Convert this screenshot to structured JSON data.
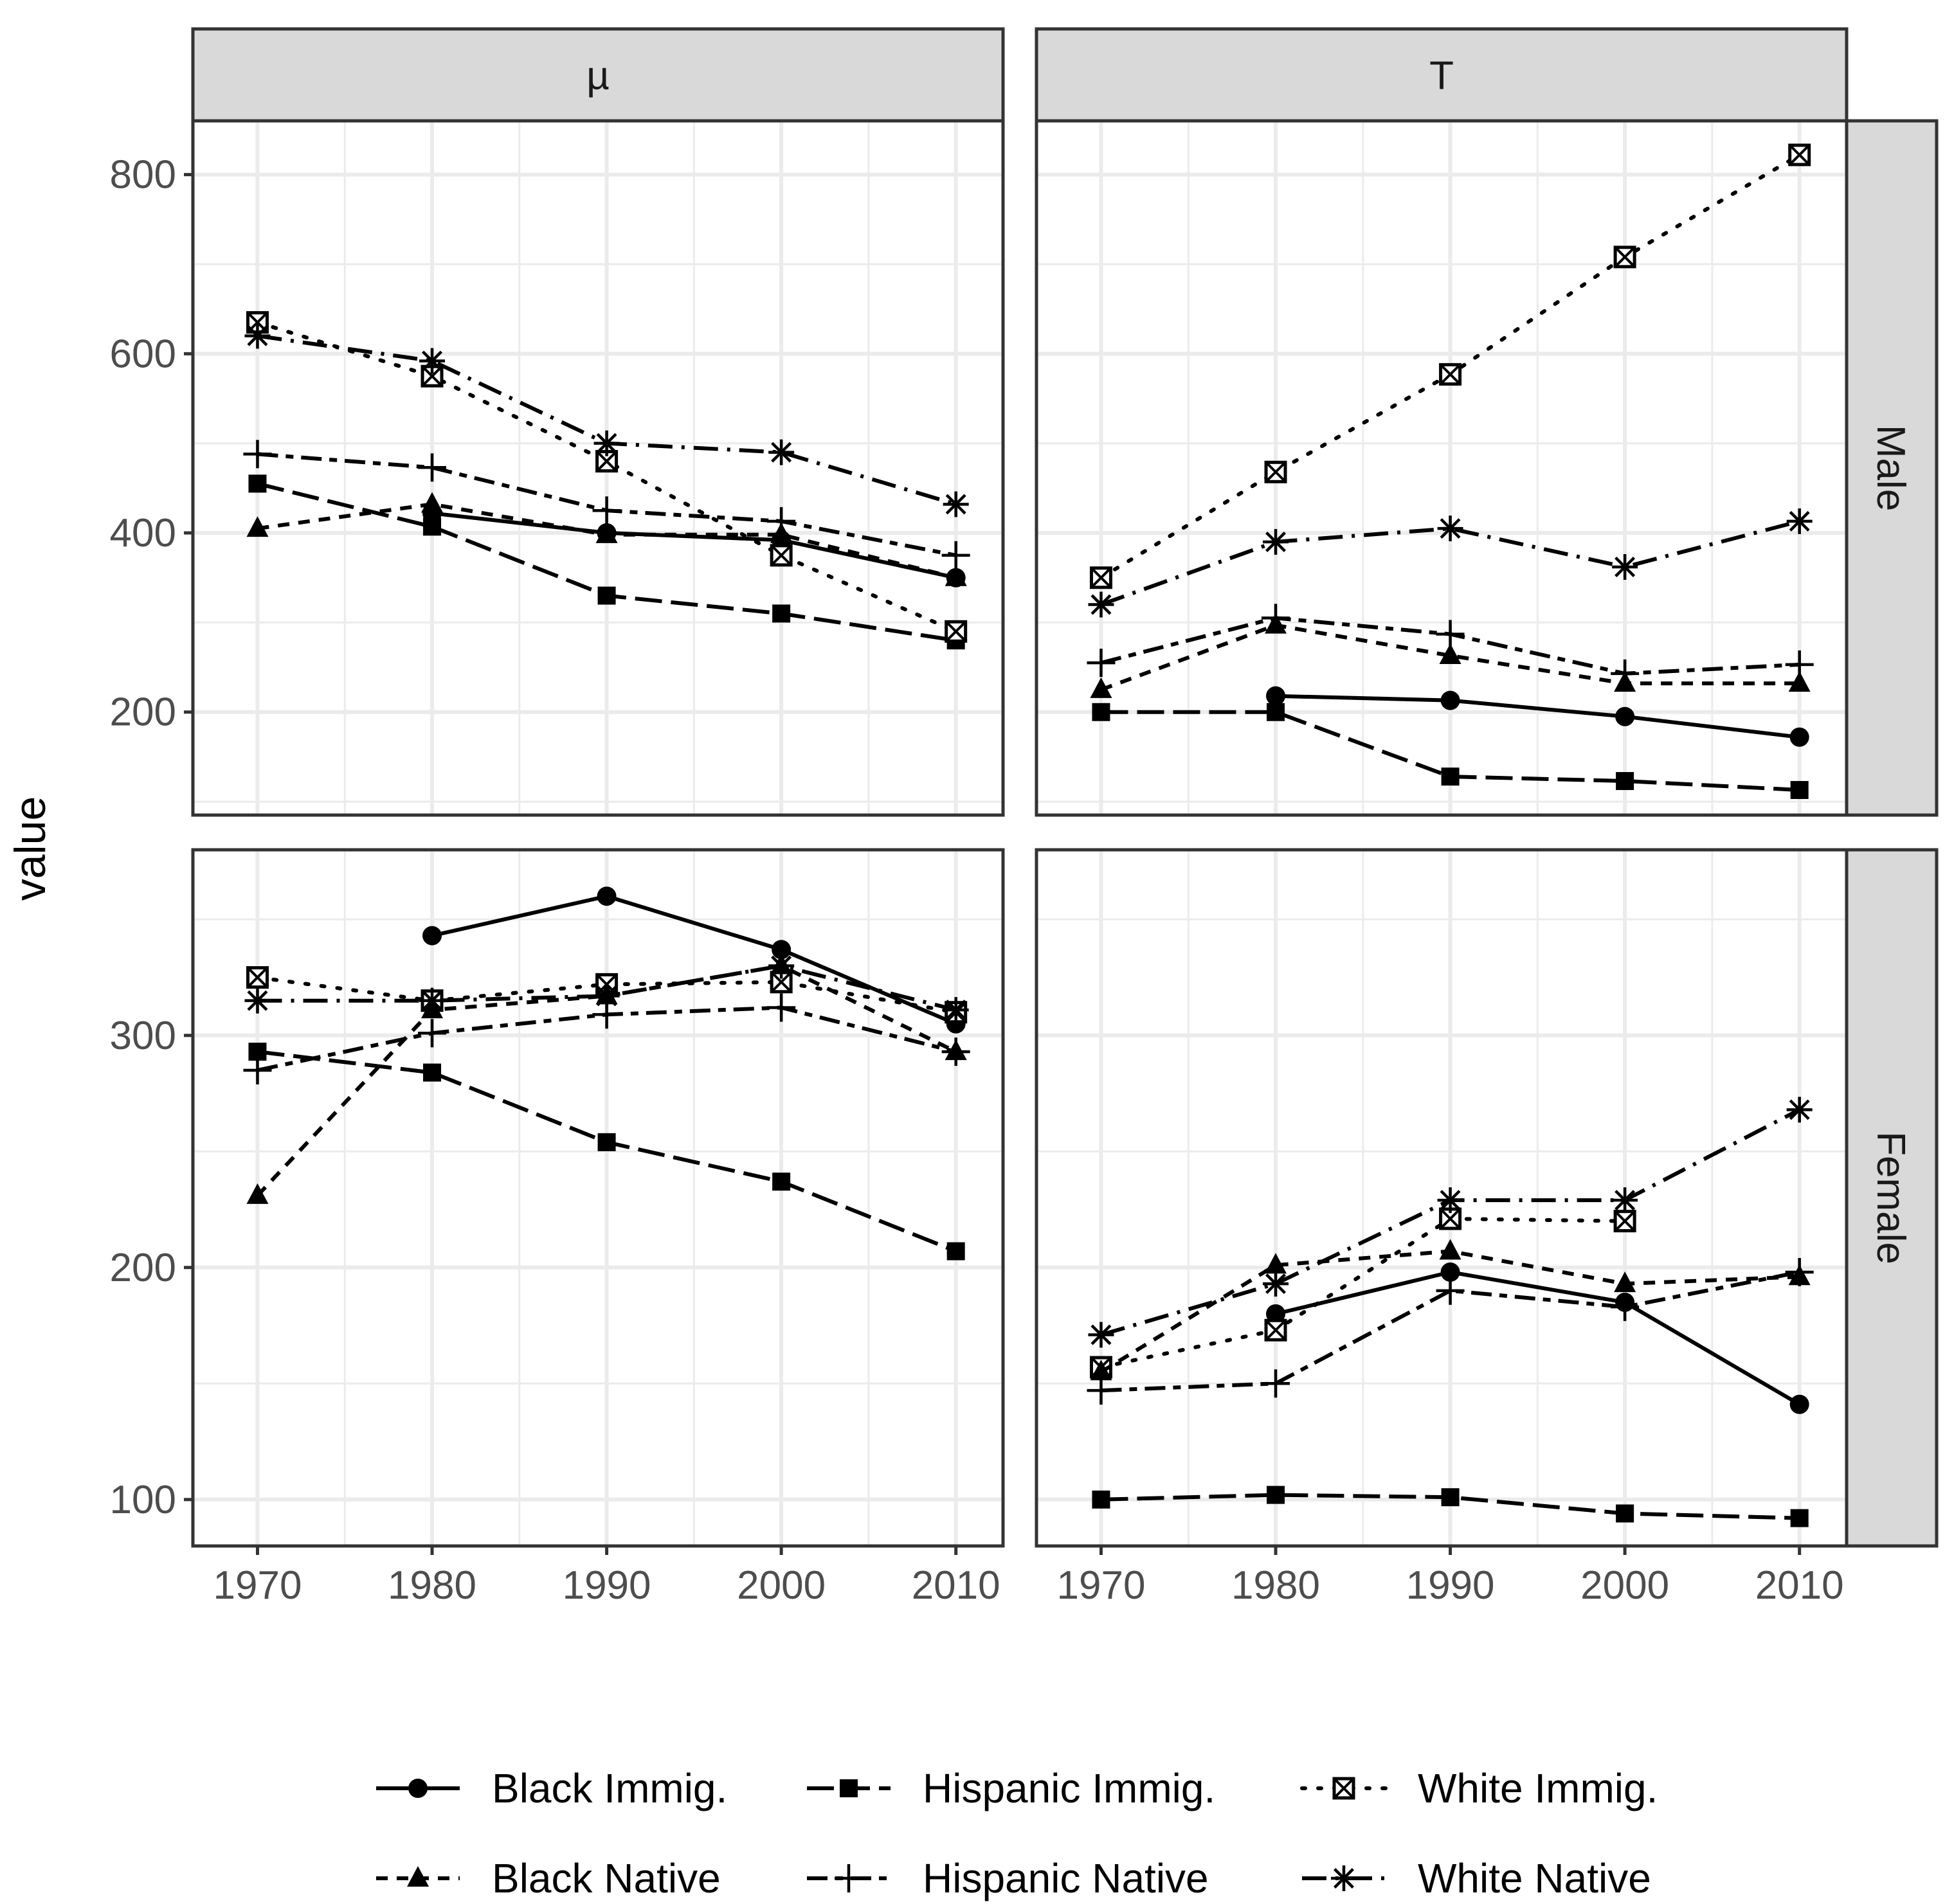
{
  "chart_data": {
    "type": "line",
    "x": [
      1970,
      1980,
      1990,
      2000,
      2010
    ],
    "ylabel": "value",
    "xlabel": "",
    "columns": [
      "µ",
      "T"
    ],
    "rows": [
      "Male",
      "Female"
    ],
    "row_ylims": {
      "Male": [
        85,
        860
      ],
      "Female": [
        80,
        380
      ]
    },
    "y_ticks": {
      "Male": [
        200,
        400,
        600,
        800
      ],
      "Female": [
        100,
        200,
        300
      ]
    },
    "x_ticks": [
      1970,
      1980,
      1990,
      2000,
      2010
    ],
    "series_names": [
      "Black Immig.",
      "Hispanic Immig.",
      "White Immig.",
      "Black Native",
      "Hispanic Native",
      "White Native"
    ],
    "panels": [
      {
        "row": "Male",
        "col": "µ",
        "series": [
          {
            "name": "Black Immig.",
            "values": [
              null,
              422,
              400,
              392,
              350
            ]
          },
          {
            "name": "Hispanic Immig.",
            "values": [
              455,
              407,
              330,
              310,
              280
            ]
          },
          {
            "name": "White Immig.",
            "values": [
              635,
              575,
              480,
              375,
              290
            ]
          },
          {
            "name": "Black Native",
            "values": [
              405,
              432,
              398,
              398,
              350
            ]
          },
          {
            "name": "Hispanic Native",
            "values": [
              488,
              473,
              425,
              413,
              375
            ]
          },
          {
            "name": "White Native",
            "values": [
              620,
              592,
              500,
              490,
              432
            ]
          }
        ]
      },
      {
        "row": "Male",
        "col": "T",
        "series": [
          {
            "name": "Black Immig.",
            "values": [
              null,
              218,
              213,
              195,
              172
            ]
          },
          {
            "name": "Hispanic Immig.",
            "values": [
              200,
              200,
              128,
              123,
              113
            ]
          },
          {
            "name": "White Immig.",
            "values": [
              350,
              468,
              577,
              708,
              822
            ]
          },
          {
            "name": "Black Native",
            "values": [
              225,
              297,
              263,
              232,
              232
            ]
          },
          {
            "name": "Hispanic Native",
            "values": [
              255,
              305,
              287,
              243,
              253
            ]
          },
          {
            "name": "White Native",
            "values": [
              320,
              390,
              405,
              362,
              413
            ]
          }
        ]
      },
      {
        "row": "Female",
        "col": "µ",
        "series": [
          {
            "name": "Black Immig.",
            "values": [
              null,
              343,
              360,
              337,
              305
            ]
          },
          {
            "name": "Hispanic Immig.",
            "values": [
              293,
              284,
              254,
              237,
              207
            ]
          },
          {
            "name": "White Immig.",
            "values": [
              325,
              315,
              322,
              323,
              310
            ]
          },
          {
            "name": "Black Native",
            "values": [
              231,
              311,
              317,
              330,
              293
            ]
          },
          {
            "name": "Hispanic Native",
            "values": [
              285,
              301,
              309,
              312,
              293
            ]
          },
          {
            "name": "White Native",
            "values": [
              315,
              315,
              317,
              330,
              311
            ]
          }
        ]
      },
      {
        "row": "Female",
        "col": "T",
        "series": [
          {
            "name": "Black Immig.",
            "values": [
              null,
              180,
              198,
              185,
              141
            ]
          },
          {
            "name": "Hispanic Immig.",
            "values": [
              100,
              102,
              101,
              94,
              92
            ]
          },
          {
            "name": "White Immig.",
            "values": [
              157,
              173,
              221,
              220,
              null
            ]
          },
          {
            "name": "Black Native",
            "values": [
              155,
              201,
              207,
              193,
              196
            ]
          },
          {
            "name": "Hispanic Native",
            "values": [
              147,
              150,
              190,
              183,
              198
            ]
          },
          {
            "name": "White Native",
            "values": [
              171,
              193,
              229,
              229,
              268
            ]
          }
        ]
      }
    ],
    "legend": {
      "position": "bottom",
      "items": [
        {
          "label": "Black Immig.",
          "marker": "circle",
          "dash": "solid"
        },
        {
          "label": "Hispanic Immig.",
          "marker": "square",
          "dash": "longdash"
        },
        {
          "label": "White Immig.",
          "marker": "boxed-x",
          "dash": "dotted"
        },
        {
          "label": "Black Native",
          "marker": "triangle",
          "dash": "dashed"
        },
        {
          "label": "Hispanic Native",
          "marker": "plus",
          "dash": "twodash"
        },
        {
          "label": "White Native",
          "marker": "asterisk",
          "dash": "dotdash"
        }
      ]
    }
  }
}
